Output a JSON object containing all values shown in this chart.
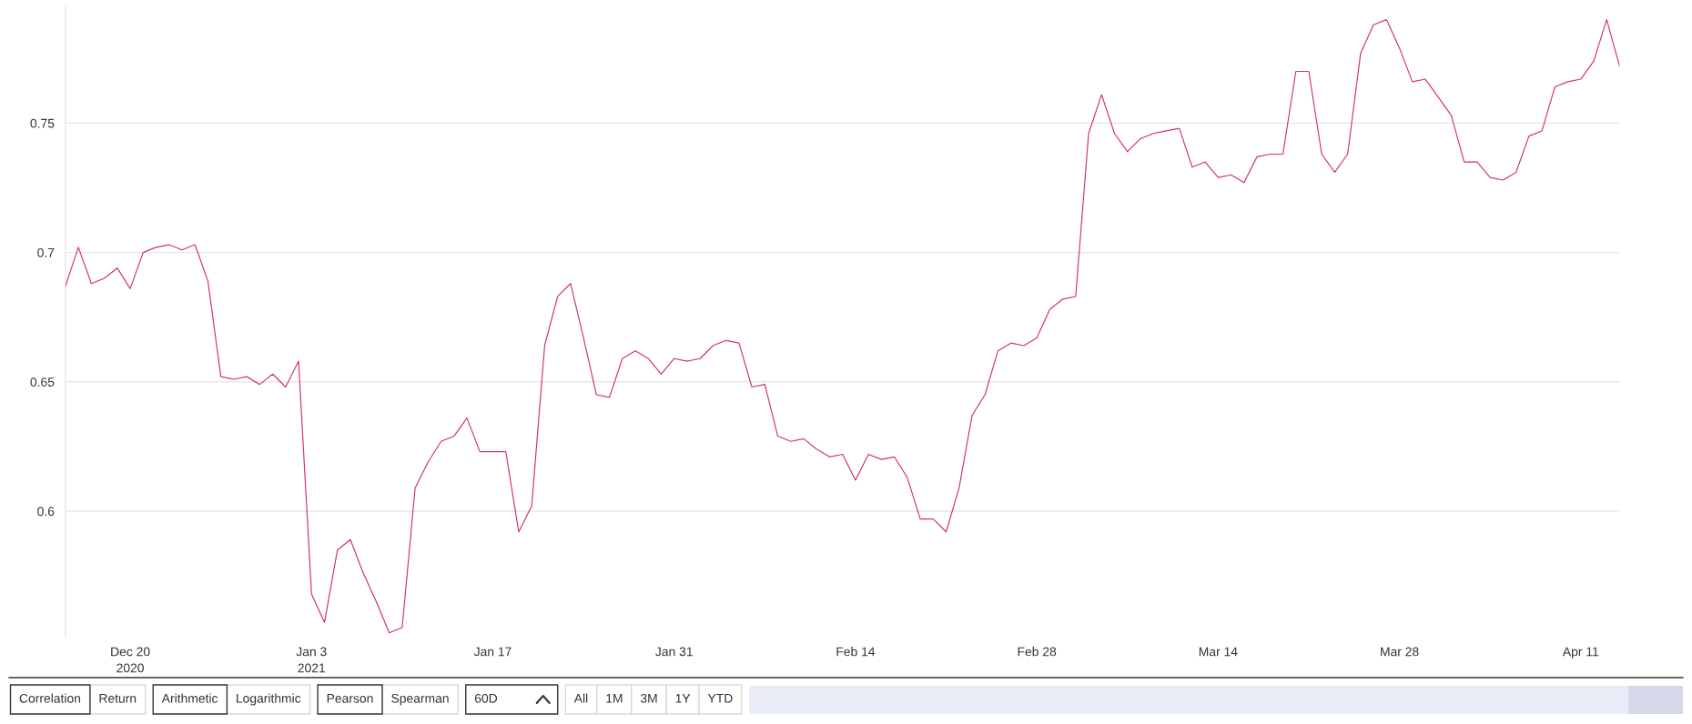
{
  "chart_data": {
    "type": "line",
    "x": [
      "2020-12-15",
      "2020-12-16",
      "2020-12-17",
      "2020-12-18",
      "2020-12-19",
      "2020-12-20",
      "2020-12-21",
      "2020-12-22",
      "2020-12-23",
      "2020-12-24",
      "2020-12-25",
      "2020-12-26",
      "2020-12-27",
      "2020-12-28",
      "2020-12-29",
      "2020-12-30",
      "2020-12-31",
      "2021-01-01",
      "2021-01-02",
      "2021-01-03",
      "2021-01-04",
      "2021-01-05",
      "2021-01-06",
      "2021-01-07",
      "2021-01-08",
      "2021-01-09",
      "2021-01-10",
      "2021-01-11",
      "2021-01-12",
      "2021-01-13",
      "2021-01-14",
      "2021-01-15",
      "2021-01-16",
      "2021-01-17",
      "2021-01-18",
      "2021-01-19",
      "2021-01-20",
      "2021-01-21",
      "2021-01-22",
      "2021-01-23",
      "2021-01-24",
      "2021-01-25",
      "2021-01-26",
      "2021-01-27",
      "2021-01-28",
      "2021-01-29",
      "2021-01-30",
      "2021-01-31",
      "2021-02-01",
      "2021-02-02",
      "2021-02-03",
      "2021-02-04",
      "2021-02-05",
      "2021-02-06",
      "2021-02-07",
      "2021-02-08",
      "2021-02-09",
      "2021-02-10",
      "2021-02-11",
      "2021-02-12",
      "2021-02-13",
      "2021-02-14",
      "2021-02-15",
      "2021-02-16",
      "2021-02-17",
      "2021-02-18",
      "2021-02-19",
      "2021-02-20",
      "2021-02-21",
      "2021-02-22",
      "2021-02-23",
      "2021-02-24",
      "2021-02-25",
      "2021-02-26",
      "2021-02-27",
      "2021-02-28",
      "2021-03-01",
      "2021-03-02",
      "2021-03-03",
      "2021-03-04",
      "2021-03-05",
      "2021-03-06",
      "2021-03-07",
      "2021-03-08",
      "2021-03-09",
      "2021-03-10",
      "2021-03-11",
      "2021-03-12",
      "2021-03-13",
      "2021-03-14",
      "2021-03-15",
      "2021-03-16",
      "2021-03-17",
      "2021-03-18",
      "2021-03-19",
      "2021-03-20",
      "2021-03-21",
      "2021-03-22",
      "2021-03-23",
      "2021-03-24",
      "2021-03-25",
      "2021-03-26",
      "2021-03-27",
      "2021-03-28",
      "2021-03-29",
      "2021-03-30",
      "2021-03-31",
      "2021-04-01",
      "2021-04-02",
      "2021-04-03",
      "2021-04-04",
      "2021-04-05",
      "2021-04-06",
      "2021-04-07",
      "2021-04-08",
      "2021-04-09",
      "2021-04-10",
      "2021-04-11",
      "2021-04-12",
      "2021-04-13",
      "2021-04-14"
    ],
    "series": [
      {
        "color": "#d4326a",
        "values": [
          0.687,
          0.702,
          0.688,
          0.69,
          0.694,
          0.686,
          0.7,
          0.702,
          0.703,
          0.701,
          0.703,
          0.689,
          0.652,
          0.651,
          0.652,
          0.649,
          0.653,
          0.648,
          0.658,
          0.568,
          0.557,
          0.585,
          0.589,
          0.576,
          0.565,
          0.553,
          0.555,
          0.609,
          0.619,
          0.627,
          0.629,
          0.636,
          0.623,
          0.623,
          0.623,
          0.592,
          0.602,
          0.664,
          0.683,
          0.688,
          0.667,
          0.645,
          0.644,
          0.659,
          0.662,
          0.659,
          0.653,
          0.659,
          0.658,
          0.659,
          0.664,
          0.666,
          0.665,
          0.648,
          0.649,
          0.629,
          0.627,
          0.628,
          0.624,
          0.621,
          0.622,
          0.612,
          0.622,
          0.62,
          0.621,
          0.613,
          0.597,
          0.597,
          0.592,
          0.609,
          0.637,
          0.645,
          0.662,
          0.665,
          0.664,
          0.667,
          0.678,
          0.682,
          0.683,
          0.746,
          0.761,
          0.746,
          0.739,
          0.744,
          0.746,
          0.747,
          0.748,
          0.733,
          0.735,
          0.729,
          0.73,
          0.727,
          0.737,
          0.738,
          0.738,
          0.77,
          0.77,
          0.738,
          0.731,
          0.738,
          0.777,
          0.788,
          0.79,
          0.779,
          0.766,
          0.767,
          0.76,
          0.753,
          0.735,
          0.735,
          0.729,
          0.728,
          0.731,
          0.745,
          0.747,
          0.764,
          0.766,
          0.767,
          0.774,
          0.79,
          0.772
        ]
      }
    ],
    "xlim": [
      "2020-12-15",
      "2021-04-14"
    ],
    "xticks": [
      {
        "value": "2020-12-20",
        "label": "Dec 20\n2020"
      },
      {
        "value": "2021-01-03",
        "label": "Jan 3\n2021"
      },
      {
        "value": "2021-01-17",
        "label": "Jan 17"
      },
      {
        "value": "2021-01-31",
        "label": "Jan 31"
      },
      {
        "value": "2021-02-14",
        "label": "Feb 14"
      },
      {
        "value": "2021-02-28",
        "label": "Feb 28"
      },
      {
        "value": "2021-03-14",
        "label": "Mar 14"
      },
      {
        "value": "2021-03-28",
        "label": "Mar 28"
      },
      {
        "value": "2021-04-11",
        "label": "Apr 11"
      }
    ],
    "ylim": [
      0.551,
      0.795
    ],
    "yticks": [
      0.6,
      0.65,
      0.7,
      0.75
    ],
    "grid": "y",
    "line_style": "solid",
    "annotations": [
      "Correlation",
      "Return",
      "Arithmetic",
      "Logarithmic",
      "Pearson",
      "Spearman",
      "60D",
      "All",
      "1M",
      "3M",
      "1Y",
      "YTD"
    ]
  }
}
